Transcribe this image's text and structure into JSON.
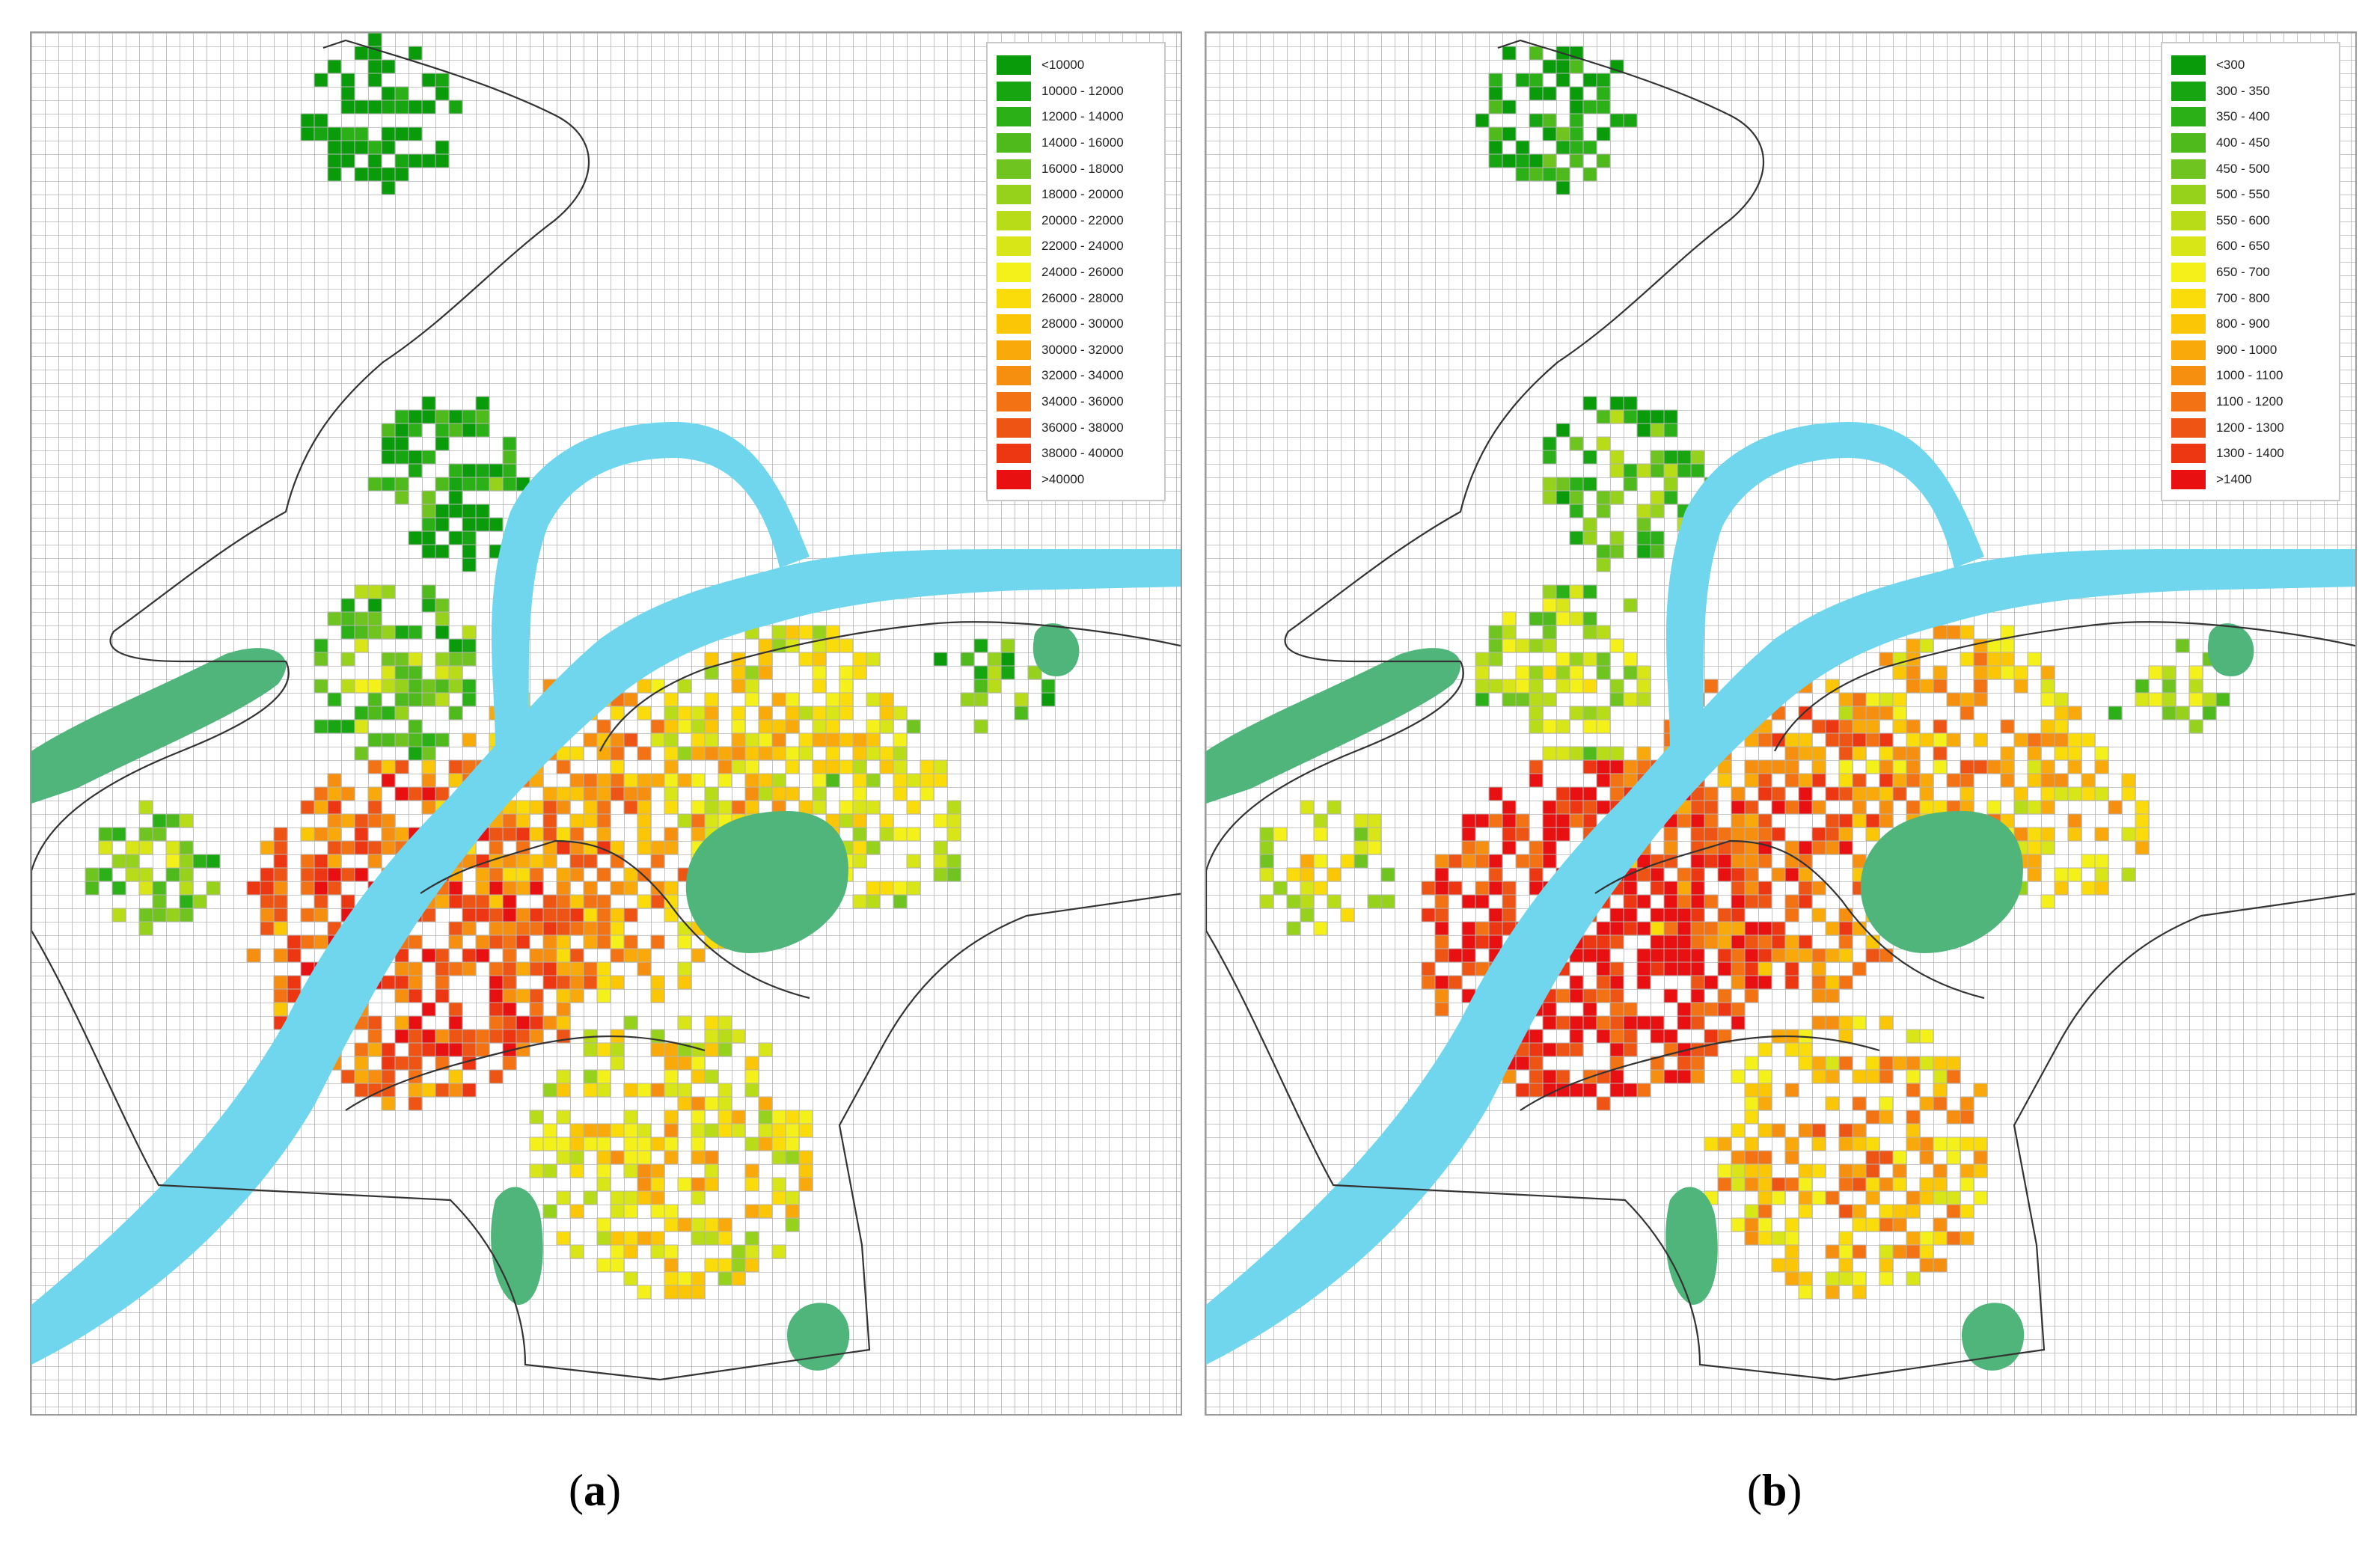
{
  "panels": [
    {
      "id": "a",
      "caption_letter": "a",
      "legend": [
        {
          "label": "<10000",
          "color": "#0a9b0a"
        },
        {
          "label": "10000 - 12000",
          "color": "#17a612"
        },
        {
          "label": "12000 - 14000",
          "color": "#2bb017"
        },
        {
          "label": "14000 - 16000",
          "color": "#4fba1c"
        },
        {
          "label": "16000 - 18000",
          "color": "#6fc41f"
        },
        {
          "label": "18000 - 20000",
          "color": "#96d21c"
        },
        {
          "label": "20000 - 22000",
          "color": "#b8dc18"
        },
        {
          "label": "22000 - 24000",
          "color": "#d8e618"
        },
        {
          "label": "24000 - 26000",
          "color": "#f4f01a"
        },
        {
          "label": "26000 - 28000",
          "color": "#fadc0a"
        },
        {
          "label": "28000 - 30000",
          "color": "#fbc605"
        },
        {
          "label": "30000 - 32000",
          "color": "#f9aa0a"
        },
        {
          "label": "32000 - 34000",
          "color": "#f68e0f"
        },
        {
          "label": "34000 - 36000",
          "color": "#f27214"
        },
        {
          "label": "36000 - 38000",
          "color": "#ee5514"
        },
        {
          "label": "38000 - 40000",
          "color": "#ec3712"
        },
        {
          "label": ">40000",
          "color": "#e81010"
        }
      ]
    },
    {
      "id": "b",
      "caption_letter": "b",
      "legend": [
        {
          "label": "<300",
          "color": "#0a9b0a"
        },
        {
          "label": "300 - 350",
          "color": "#17a612"
        },
        {
          "label": "350 - 400",
          "color": "#2bb017"
        },
        {
          "label": "400 - 450",
          "color": "#4fba1c"
        },
        {
          "label": "450 - 500",
          "color": "#6fc41f"
        },
        {
          "label": "500 - 550",
          "color": "#96d21c"
        },
        {
          "label": "550 - 600",
          "color": "#b8dc18"
        },
        {
          "label": "600 - 650",
          "color": "#d8e618"
        },
        {
          "label": "650 - 700",
          "color": "#f4f01a"
        },
        {
          "label": "700 - 800",
          "color": "#fadc0a"
        },
        {
          "label": "800 - 900",
          "color": "#fbc605"
        },
        {
          "label": "900 - 1000",
          "color": "#f9aa0a"
        },
        {
          "label": "1000 - 1100",
          "color": "#f68e0f"
        },
        {
          "label": "1100 - 1200",
          "color": "#f27214"
        },
        {
          "label": "1200 - 1300",
          "color": "#ee5514"
        },
        {
          "label": "1300 - 1400",
          "color": "#ec3712"
        },
        {
          "label": ">1400",
          "color": "#e81010"
        }
      ]
    }
  ],
  "colors": {
    "river": "#6fd6ee",
    "greenspace": "#4fb57a",
    "boundary": "#333333",
    "grid": "#b4b4b4"
  }
}
